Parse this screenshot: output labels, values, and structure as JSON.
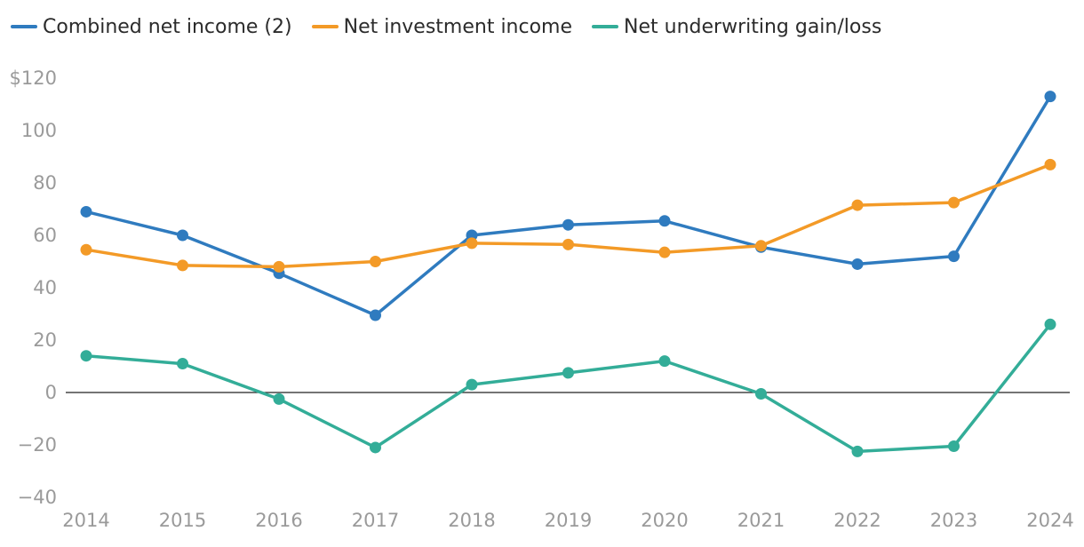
{
  "chart_data": {
    "type": "line",
    "title": "",
    "xlabel": "",
    "ylabel": "",
    "categories": [
      "2014",
      "2015",
      "2016",
      "2017",
      "2018",
      "2019",
      "2020",
      "2021",
      "2022",
      "2023",
      "2024"
    ],
    "ylim": [
      -40,
      120
    ],
    "yticks": [
      -40,
      -20,
      0,
      20,
      40,
      60,
      80,
      100,
      120
    ],
    "ytick_labels": [
      "−40",
      "−20",
      "0",
      "20",
      "40",
      "60",
      "80",
      "100",
      "$120"
    ],
    "grid": false,
    "zero_line": true,
    "legend_position": "top-left",
    "series": [
      {
        "name": "Combined net income (2)",
        "color": "#2f7bbf",
        "values": [
          69,
          60,
          45.5,
          29.5,
          60,
          64,
          65.5,
          55.5,
          49,
          52,
          113
        ]
      },
      {
        "name": "Net investment income",
        "color": "#f39a27",
        "values": [
          54.5,
          48.5,
          48,
          50,
          57,
          56.5,
          53.5,
          56,
          71.5,
          72.5,
          87
        ]
      },
      {
        "name": "Net underwriting gain/loss",
        "color": "#33ad98",
        "values": [
          14,
          11,
          -2.5,
          -21,
          3,
          7.5,
          12,
          -0.5,
          -22.5,
          -20.5,
          26
        ]
      }
    ]
  }
}
